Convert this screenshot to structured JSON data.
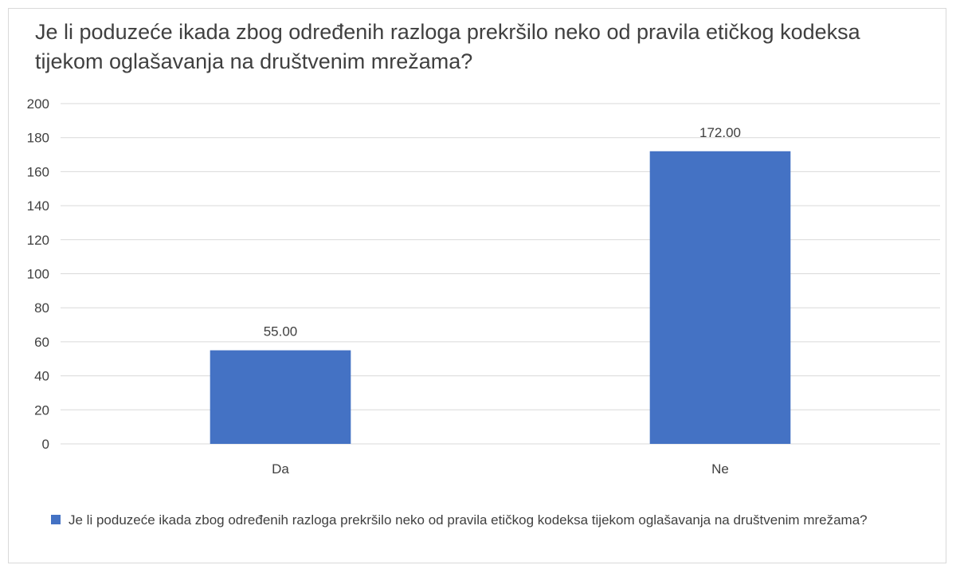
{
  "chart_data": {
    "type": "bar",
    "title": "Je li poduzeće ikada zbog određenih razloga prekršilo neko od pravila etičkog kodeksa tijekom oglašavanja na društvenim mrežama?",
    "categories": [
      "Da",
      "Ne"
    ],
    "series": [
      {
        "name": "Je li poduzeće ikada zbog određenih razloga prekršilo neko od pravila etičkog kodeksa tijekom oglašavanja na društvenim mrežama?",
        "values": [
          55,
          172
        ],
        "data_labels": [
          "55.00",
          "172.00"
        ],
        "color": "#4472C4"
      }
    ],
    "ylim": [
      0,
      200
    ],
    "yticks": [
      0,
      20,
      40,
      60,
      80,
      100,
      120,
      140,
      160,
      180,
      200
    ],
    "grid": true,
    "legend_position": "bottom-left",
    "xlabel": "",
    "ylabel": ""
  }
}
